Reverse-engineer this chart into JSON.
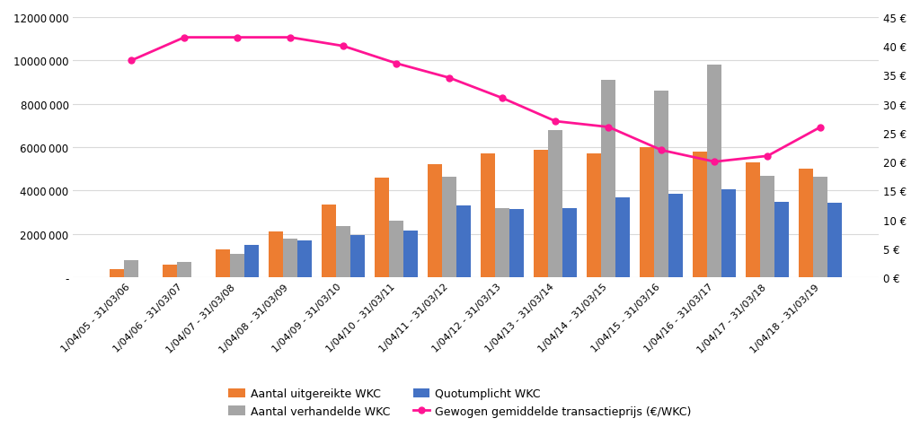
{
  "categories": [
    "1/04/05 - 31/03/06",
    "1/04/06 - 31/03/07",
    "1/04/07 - 31/03/08",
    "1/04/08 - 31/03/09",
    "1/04/09 - 31/03/10",
    "1/04/10 - 31/03/11",
    "1/04/11 - 31/03/12",
    "1/04/12 - 31/03/13",
    "1/04/13 - 31/03/14",
    "1/04/14 - 31/03/15",
    "1/04/15 - 31/03/16",
    "1/04/16 - 31/03/17",
    "1/04/17 - 31/03/18",
    "1/04/18 - 31/03/19"
  ],
  "uitgereikte": [
    400000,
    600000,
    1300000,
    2100000,
    3350000,
    4600000,
    5200000,
    5700000,
    5900000,
    5700000,
    6000000,
    5800000,
    5300000,
    5000000
  ],
  "verhandelde": [
    800000,
    700000,
    1100000,
    1800000,
    2350000,
    2600000,
    4650000,
    3200000,
    6800000,
    9100000,
    8600000,
    9800000,
    4700000,
    4650000
  ],
  "quotumplicht": [
    0,
    0,
    1500000,
    1700000,
    1950000,
    2150000,
    3300000,
    3150000,
    3200000,
    3700000,
    3850000,
    4050000,
    3500000,
    3450000
  ],
  "transactieprijs": [
    37.5,
    41.5,
    41.5,
    41.5,
    40.0,
    37.0,
    34.5,
    31.0,
    27.0,
    26.0,
    22.0,
    20.0,
    21.0,
    26.0
  ],
  "bar_width": 0.27,
  "uitgereikte_color": "#ED7D31",
  "verhandelde_color": "#A5A5A5",
  "quotumplicht_color": "#4472C4",
  "transactie_color": "#FF1493",
  "ylim_left": [
    0,
    12000000
  ],
  "ylim_right": [
    0,
    45
  ],
  "ylabel_left_ticks": [
    0,
    2000000,
    4000000,
    6000000,
    8000000,
    10000000,
    12000000
  ],
  "ylabel_right_ticks": [
    0,
    5,
    10,
    15,
    20,
    25,
    30,
    35,
    40,
    45
  ],
  "legend_labels": [
    "Aantal uitgereikte WKC",
    "Aantal verhandelde WKC",
    "Quotumplicht WKC",
    "Gewogen gemiddelde transactieprijs (€/WKC)"
  ],
  "background_color": "#FFFFFF",
  "grid_color": "#D9D9D9"
}
